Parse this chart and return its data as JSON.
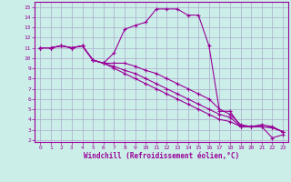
{
  "xlabel": "Windchill (Refroidissement éolien,°C)",
  "bg_color": "#cceee8",
  "line_color": "#990099",
  "grid_color": "#aaaacc",
  "xlim": [
    -0.5,
    23.5
  ],
  "ylim": [
    1.8,
    15.5
  ],
  "xticks": [
    0,
    1,
    2,
    3,
    4,
    5,
    6,
    7,
    8,
    9,
    10,
    11,
    12,
    13,
    14,
    15,
    16,
    17,
    18,
    19,
    20,
    21,
    22,
    23
  ],
  "yticks": [
    2,
    3,
    4,
    5,
    6,
    7,
    8,
    9,
    10,
    11,
    12,
    13,
    14,
    15
  ],
  "lines": [
    {
      "x": [
        0,
        1,
        2,
        3,
        4,
        5,
        6,
        7,
        8,
        9,
        10,
        11,
        12,
        13,
        14,
        15,
        16,
        17,
        18,
        19,
        20,
        21,
        22,
        23
      ],
      "y": [
        11,
        11,
        11.2,
        11,
        11.2,
        9.8,
        9.5,
        10.5,
        12.8,
        13.2,
        13.5,
        14.8,
        14.8,
        14.8,
        14.2,
        14.2,
        11.2,
        4.8,
        4.8,
        3.3,
        3.3,
        3.3,
        2.2,
        2.5
      ]
    },
    {
      "x": [
        0,
        1,
        2,
        3,
        4,
        5,
        6,
        7,
        8,
        9,
        10,
        11,
        12,
        13,
        14,
        15,
        16,
        17,
        18,
        19,
        20,
        21,
        22,
        23
      ],
      "y": [
        11,
        11,
        11.2,
        11,
        11.2,
        9.8,
        9.5,
        9.5,
        9.5,
        9.2,
        8.8,
        8.5,
        8.0,
        7.5,
        7.0,
        6.5,
        6.0,
        5.0,
        4.5,
        3.5,
        3.3,
        3.5,
        3.3,
        2.8
      ]
    },
    {
      "x": [
        0,
        1,
        2,
        3,
        4,
        5,
        6,
        7,
        8,
        9,
        10,
        11,
        12,
        13,
        14,
        15,
        16,
        17,
        18,
        19,
        20,
        21,
        22,
        23
      ],
      "y": [
        11,
        11,
        11.2,
        11,
        11.2,
        9.8,
        9.5,
        9.2,
        8.8,
        8.5,
        8.0,
        7.5,
        7.0,
        6.5,
        6.0,
        5.5,
        5.0,
        4.5,
        4.2,
        3.3,
        3.3,
        3.3,
        3.2,
        2.8
      ]
    },
    {
      "x": [
        0,
        1,
        2,
        3,
        4,
        5,
        6,
        7,
        8,
        9,
        10,
        11,
        12,
        13,
        14,
        15,
        16,
        17,
        18,
        19,
        20,
        21,
        22,
        23
      ],
      "y": [
        11,
        11,
        11.2,
        11,
        11.2,
        9.8,
        9.5,
        9.0,
        8.5,
        8.0,
        7.5,
        7.0,
        6.5,
        6.0,
        5.5,
        5.0,
        4.5,
        4.0,
        3.8,
        3.3,
        3.3,
        3.3,
        3.2,
        2.8
      ]
    }
  ]
}
